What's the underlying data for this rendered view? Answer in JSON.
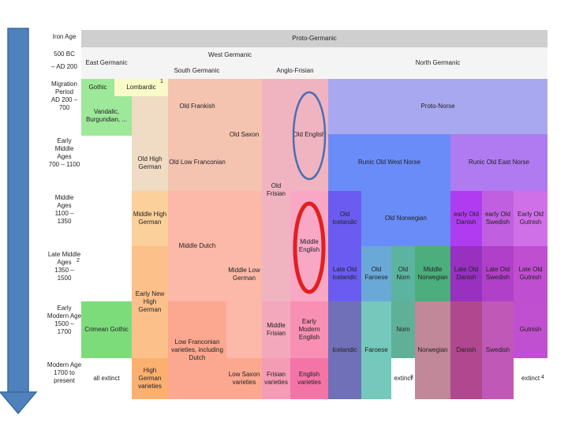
{
  "table": {
    "header": {
      "proto_germanic": "Proto-Germanic",
      "west_germanic": "West Germanic",
      "north_germanic": "North Germanic",
      "east_germanic": "East Germanic",
      "south_germanic": "South Germanic",
      "anglo_frisian": "Anglo-Frisian"
    },
    "periods": {
      "iron_age": "Iron Age",
      "bc500": "500 BC",
      "ad200": "– AD 200",
      "migration": "Migration\nPeriod\nAD 200 –\n700",
      "early_ma": "Early\nMiddle\nAges\n700 – 1100",
      "middle_ages": "Middle\nAges\n1100 –\n1350",
      "late_ma": "Late Middle\nAges\n1350 –\n1500",
      "early_modern": "Early\nModern Age\n1500 –\n1700",
      "modern": "Modern Age\n1700 to\npresent"
    },
    "cells": {
      "gothic": "Gothic",
      "lombardic": "Lombardic",
      "vandalic": "Vandalic,\nBurgundian, ...",
      "crimean_gothic": "Crimean Gothic",
      "all_extinct": "all extinct",
      "old_franconian": "Old Frankish",
      "old_high_german": "Old High\nGerman",
      "middle_high_german": "Middle High\nGerman",
      "early_new_high_german": "Early New\nHigh\nGerman",
      "high_german_varieties": "High\nGerman\nvarieties",
      "old_low_franconian": "Old Low Franconian",
      "middle_dutch": "Middle Dutch",
      "low_franconian_varieties": "Low Franconian\nvarieties, including\nDutch",
      "old_saxon": "Old Saxon",
      "middle_low_german": "Middle Low\nGerman",
      "low_saxon_varieties": "Low Saxon\nvarieties",
      "old_frisian": "Old\nFrisian",
      "middle_frisian": "Middle\nFrisian",
      "frisian_varieties": "Frisian\nvarieties",
      "old_english": "Old English",
      "middle_english": "Middle\nEnglish",
      "early_modern_english": "Early\nModern\nEnglish",
      "english_varieties": "English\nvarieties",
      "proto_norse": "Proto-Norse",
      "runic_old_west_norse": "Runic Old West Norse",
      "runic_old_east_norse": "Runic Old East Norse",
      "old_icelandic": "Old\nIcelandic",
      "old_norwegian": "Old Norwegian",
      "early_old_danish": "early Old\nDanish",
      "early_old_swedish": "early Old\nSwedish",
      "old_gutnish": "Early Old\nGutnish",
      "late_old_icelandic": "Late Old\nIcelandic",
      "old_faroese": "Old\nFaroese",
      "old_norn": "Old\nNorn",
      "middle_norwegian": "Middle\nNorwegian",
      "late_old_danish": "Late Old\nDanish",
      "late_old_swedish": "Late Old\nSwedish",
      "late_old_gutnish": "Late Old\nGutnish",
      "icelandic": "Icelandic",
      "faroese": "Faroese",
      "norn": "Norn",
      "norwegian": "Norwegian",
      "danish": "Danish",
      "swedish": "Swedish",
      "gutnish": "Gutnish",
      "extinct_norn": "extinct",
      "extinct_gutnish": "extinct"
    },
    "footnote_markers": {
      "lombardic": "1",
      "late_ma": "2",
      "norn": "3",
      "gutnish": "4"
    }
  },
  "colors": {
    "header": "#cfcfcf",
    "arrow": "#4f81bd",
    "arrow_border": "#3b6a9e",
    "blue_ellipse": "#4a6fb3",
    "red_ellipse": "#e02020"
  }
}
